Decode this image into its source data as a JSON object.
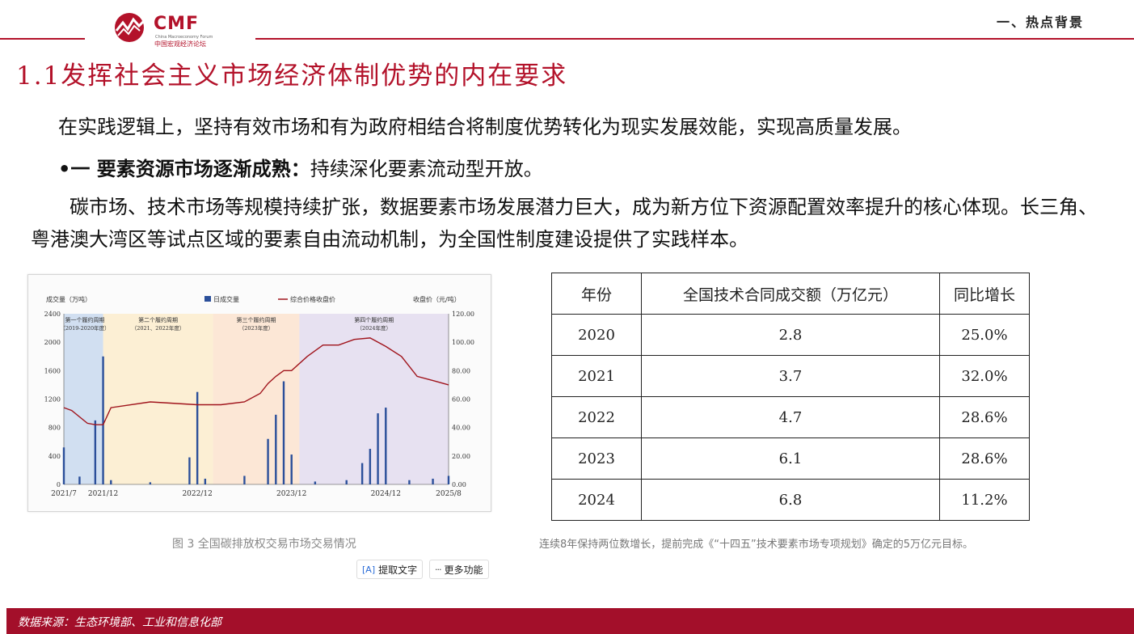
{
  "header": {
    "logo_text": "CMF",
    "logo_en": "China Macroeconomy Forum",
    "logo_cn": "中国宏观经济论坛",
    "section_tag": "一、热点背景"
  },
  "title": "1.1发挥社会主义市场经济体制优势的内在要求",
  "paragraph1": "在实践逻辑上，坚持有效市场和有为政府相结合将制度优势转化为现实发展效能，实现高质量发展。",
  "bullet": {
    "marker": "•一 ",
    "bold": "要素资源市场逐渐成熟：",
    "text": "持续深化要素流动型开放。"
  },
  "paragraph2": "碳市场、技术市场等规模持续扩张，数据要素市场发展潜力巨大，成为新方位下资源配置效率提升的核心体现。长三角、粤港澳大湾区等试点区域的要素自由流动机制，为全国性制度建设提供了实践样本。",
  "chart": {
    "y_left_label": "成交量（万吨）",
    "y_right_label": "收盘价（元/吨）",
    "legend_bar": "日成交量",
    "legend_line": "综合价格收盘价",
    "periods": [
      {
        "title": "第一个履约周期",
        "sub": "（2019-2020年度）",
        "color": "#c9d9ee"
      },
      {
        "title": "第二个履约周期",
        "sub": "（2021、2022年度）",
        "color": "#fbeccd"
      },
      {
        "title": "第三个履约周期",
        "sub": "（2023年度）",
        "color": "#fbe3cf"
      },
      {
        "title": "第四个履约周期",
        "sub": "（2024年度）",
        "color": "#e3dcef"
      }
    ],
    "caption": "图 3 全国碳排放权交易市场交易情况"
  },
  "chart_data": {
    "type": "bar",
    "x_tick_labels": [
      "2021/7",
      "2021/12",
      "2022/12",
      "2023/12",
      "2024/12",
      "2025/8"
    ],
    "y_left_ticks": [
      "2400",
      "2000",
      "1600",
      "1200",
      "800",
      "400",
      "0"
    ],
    "y_right_ticks": [
      "120.00",
      "100.00",
      "80.00",
      "60.00",
      "40.00",
      "20.00",
      "0.00"
    ],
    "ylim_left": [
      0,
      2400
    ],
    "ylim_right": [
      0,
      120
    ],
    "grid": false,
    "legend": "top-center",
    "series": [
      {
        "name": "日成交量",
        "type": "bar",
        "axis": "left",
        "x": [
          "2021/7",
          "2021/9",
          "2021/11",
          "2021/12",
          "2022/1",
          "2022/6",
          "2022/11",
          "2022/12",
          "2023/1",
          "2023/6",
          "2023/9",
          "2023/10",
          "2023/11",
          "2023/12",
          "2024/3",
          "2024/7",
          "2024/9",
          "2024/10",
          "2024/11",
          "2024/12",
          "2025/3",
          "2025/6",
          "2025/8"
        ],
        "values": [
          520,
          110,
          900,
          1800,
          60,
          30,
          380,
          1300,
          80,
          120,
          640,
          980,
          1450,
          420,
          40,
          60,
          300,
          500,
          1000,
          1080,
          60,
          80,
          120
        ]
      },
      {
        "name": "综合价格收盘价",
        "type": "line",
        "axis": "right",
        "x": [
          "2021/7",
          "2021/8",
          "2021/10",
          "2021/11",
          "2021/12",
          "2022/1",
          "2022/6",
          "2022/12",
          "2023/3",
          "2023/6",
          "2023/8",
          "2023/9",
          "2023/10",
          "2023/11",
          "2023/12",
          "2024/2",
          "2024/4",
          "2024/6",
          "2024/8",
          "2024/10",
          "2024/12",
          "2025/2",
          "2025/4",
          "2025/6",
          "2025/8"
        ],
        "values": [
          54,
          52,
          43,
          42,
          42,
          54,
          58,
          56,
          56,
          58,
          64,
          71,
          76,
          80,
          80,
          90,
          98,
          98,
          102,
          103,
          97,
          90,
          76,
          73,
          70
        ]
      }
    ]
  },
  "table": {
    "headers": [
      "年份",
      "全国技术合同成交额（万亿元）",
      "同比增长"
    ],
    "rows": [
      [
        "2020",
        "2.8",
        "25.0%"
      ],
      [
        "2021",
        "3.7",
        "32.0%"
      ],
      [
        "2022",
        "4.7",
        "28.6%"
      ],
      [
        "2023",
        "6.1",
        "28.6%"
      ],
      [
        "2024",
        "6.8",
        "11.2%"
      ]
    ],
    "caption": "连续8年保持两位数增长，提前完成《“十四五”技术要素市场专项规划》确定的5万亿元目标。"
  },
  "toolbar": {
    "extract_text": "提取文字",
    "more": "更多功能"
  },
  "footer": "数据来源：生态环境部、工业和信息化部",
  "colors": {
    "brand_red": "#b3122a",
    "footer_red": "#a30f2a",
    "bar_blue": "#2b4f9a",
    "line_red": "#a0141c"
  }
}
